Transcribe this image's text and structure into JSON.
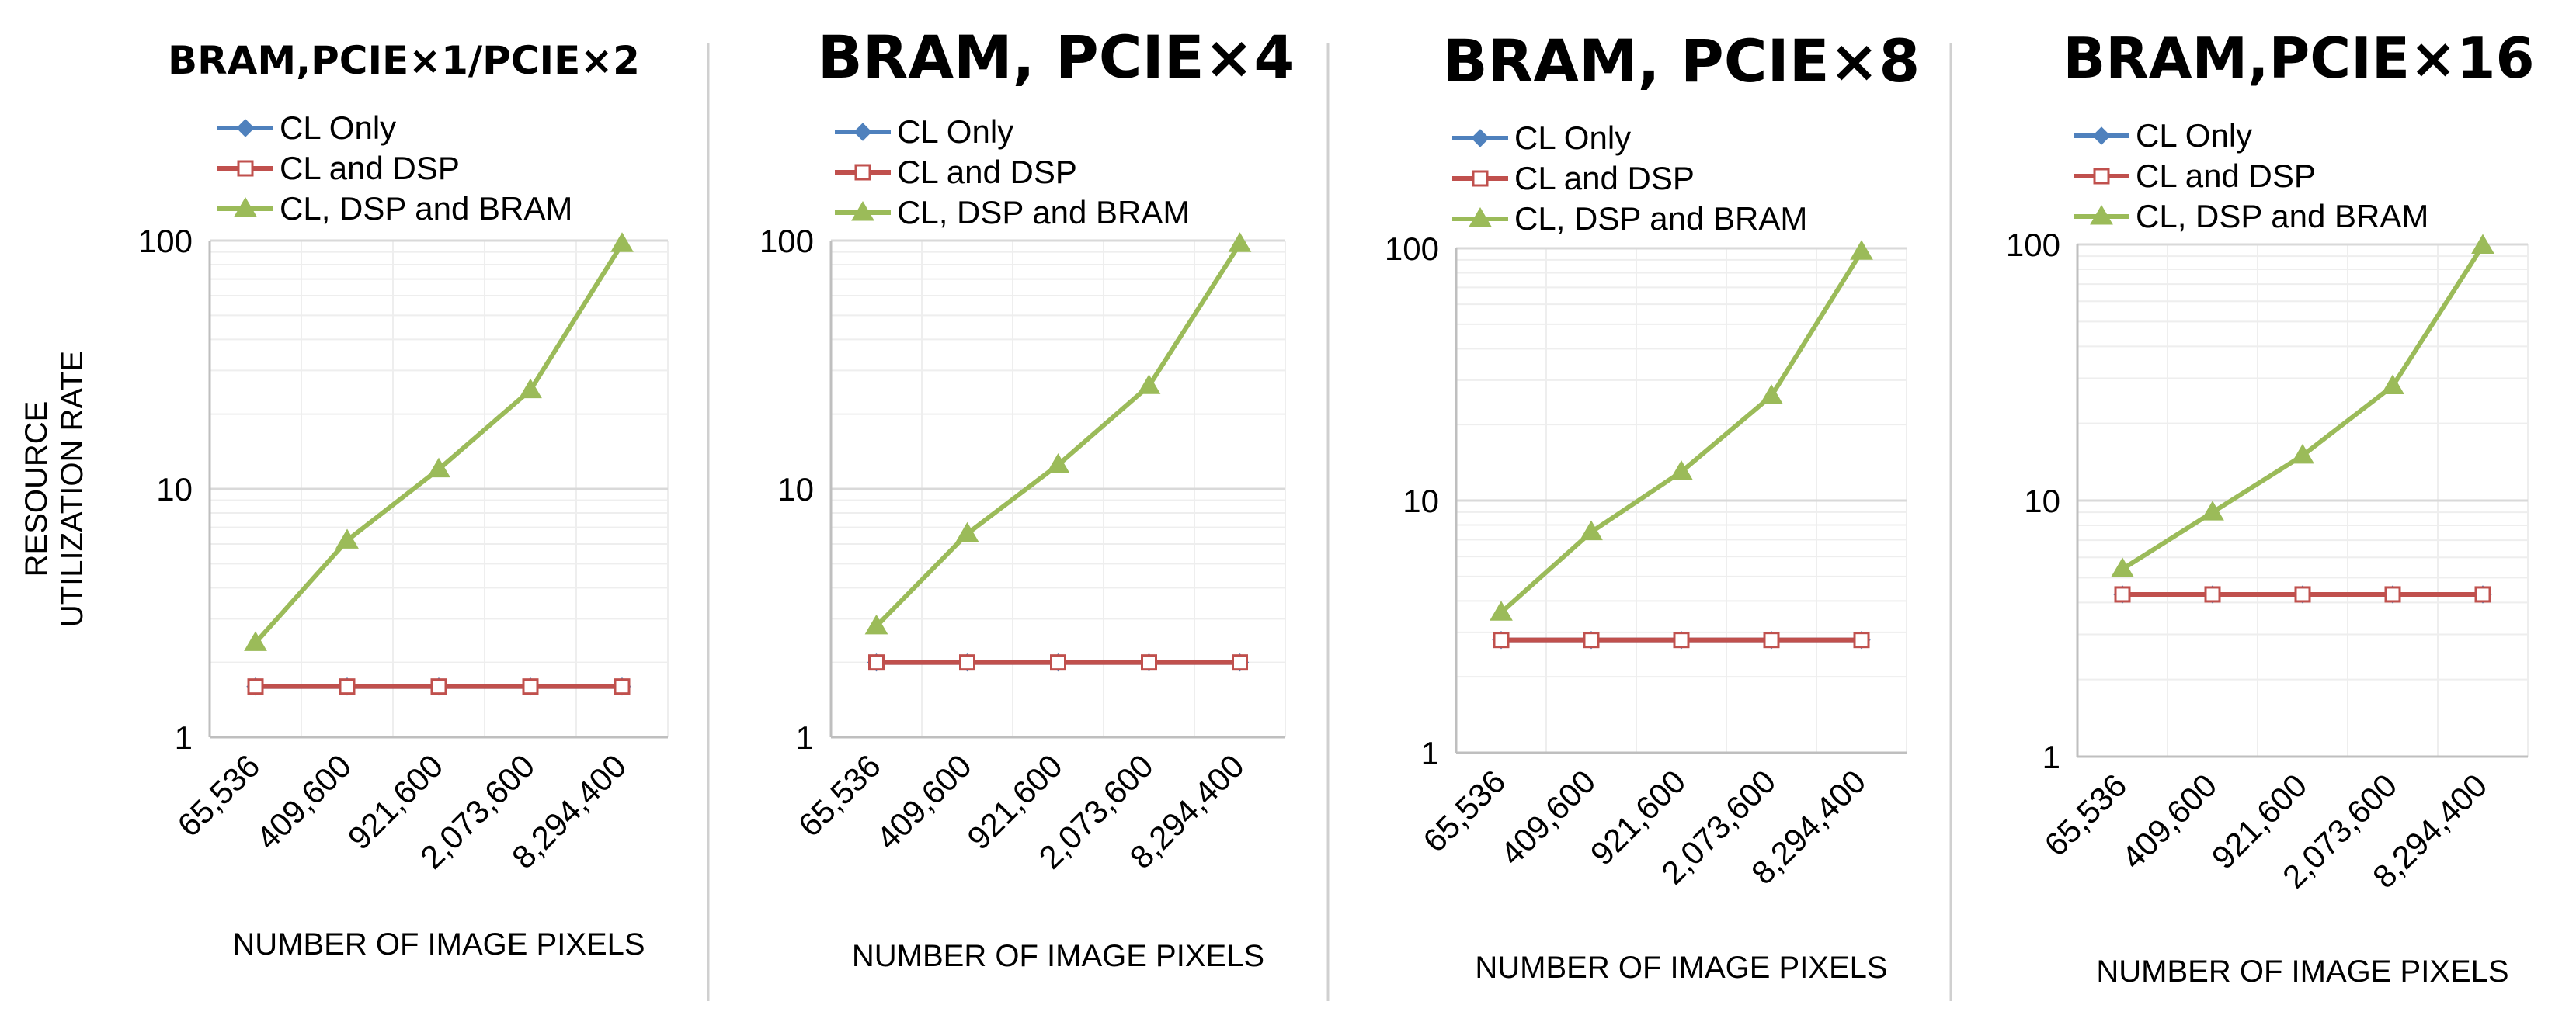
{
  "chart_data": [
    {
      "type": "line",
      "title": "BRAM,PCIE×1/PCIE×2",
      "xlabel": "NUMBER OF IMAGE PIXELS",
      "ylabel": "RESOURCE\nUTILIZATION RATE",
      "yscale": "log",
      "ylim": [
        1,
        100
      ],
      "yticks": [
        "1",
        "10",
        "100"
      ],
      "categories": [
        "65,536",
        "409,600",
        "921,600",
        "2,073,600",
        "8,294,400"
      ],
      "grid": true,
      "legend": "top",
      "series": [
        {
          "name": "CL Only",
          "color": "#4f81bd",
          "marker": "diamond",
          "values": [
            1.6,
            1.6,
            1.6,
            1.6,
            1.6
          ]
        },
        {
          "name": "CL and DSP",
          "color": "#c0504d",
          "marker": "square-open",
          "values": [
            1.6,
            1.6,
            1.6,
            1.6,
            1.6
          ]
        },
        {
          "name": "CL, DSP and BRAM",
          "color": "#9bbb59",
          "marker": "triangle",
          "values": [
            2.4,
            6.2,
            12,
            25,
            97
          ]
        }
      ]
    },
    {
      "type": "line",
      "title": "BRAM, PCIE×4",
      "xlabel": "NUMBER OF IMAGE PIXELS",
      "ylabel": "",
      "yscale": "log",
      "ylim": [
        1,
        100
      ],
      "yticks": [
        "1",
        "10",
        "100"
      ],
      "categories": [
        "65,536",
        "409,600",
        "921,600",
        "2,073,600",
        "8,294,400"
      ],
      "grid": true,
      "legend": "top",
      "series": [
        {
          "name": "CL Only",
          "color": "#4f81bd",
          "marker": "diamond",
          "values": [
            2.0,
            2.0,
            2.0,
            2.0,
            2.0
          ]
        },
        {
          "name": "CL and DSP",
          "color": "#c0504d",
          "marker": "square-open",
          "values": [
            2.0,
            2.0,
            2.0,
            2.0,
            2.0
          ]
        },
        {
          "name": "CL, DSP and BRAM",
          "color": "#9bbb59",
          "marker": "triangle",
          "values": [
            2.8,
            6.6,
            12.5,
            26,
            97
          ]
        }
      ]
    },
    {
      "type": "line",
      "title": "BRAM, PCIE×8",
      "xlabel": "NUMBER OF IMAGE PIXELS",
      "ylabel": "",
      "yscale": "log",
      "ylim": [
        1,
        100
      ],
      "yticks": [
        "1",
        "10",
        "100"
      ],
      "categories": [
        "65,536",
        "409,600",
        "921,600",
        "2,073,600",
        "8,294,400"
      ],
      "grid": true,
      "legend": "top",
      "series": [
        {
          "name": "CL Only",
          "color": "#4f81bd",
          "marker": "diamond",
          "values": [
            2.8,
            2.8,
            2.8,
            2.8,
            2.8
          ]
        },
        {
          "name": "CL and DSP",
          "color": "#c0504d",
          "marker": "square-open",
          "values": [
            2.8,
            2.8,
            2.8,
            2.8,
            2.8
          ]
        },
        {
          "name": "CL, DSP and BRAM",
          "color": "#9bbb59",
          "marker": "triangle",
          "values": [
            3.6,
            7.5,
            13,
            26,
            97
          ]
        }
      ]
    },
    {
      "type": "line",
      "title": "BRAM,PCIE×16",
      "xlabel": "NUMBER OF IMAGE PIXELS",
      "ylabel": "",
      "yscale": "log",
      "ylim": [
        1,
        100
      ],
      "yticks": [
        "1",
        "10",
        "100"
      ],
      "categories": [
        "65,536",
        "409,600",
        "921,600",
        "2,073,600",
        "8,294,400"
      ],
      "grid": true,
      "legend": "top",
      "series": [
        {
          "name": "CL Only",
          "color": "#4f81bd",
          "marker": "diamond",
          "values": [
            4.3,
            4.3,
            4.3,
            4.3,
            4.3
          ]
        },
        {
          "name": "CL and DSP",
          "color": "#c0504d",
          "marker": "square-open",
          "values": [
            4.3,
            4.3,
            4.3,
            4.3,
            4.3
          ]
        },
        {
          "name": "CL, DSP and BRAM",
          "color": "#9bbb59",
          "marker": "triangle",
          "values": [
            5.4,
            9.0,
            15,
            28,
            99
          ]
        }
      ]
    }
  ],
  "colors": {
    "divider": "#d0d0d0",
    "grid_major": "#d9d9d9",
    "grid_minor": "#eeeeee",
    "axis": "#bfbfbf"
  }
}
